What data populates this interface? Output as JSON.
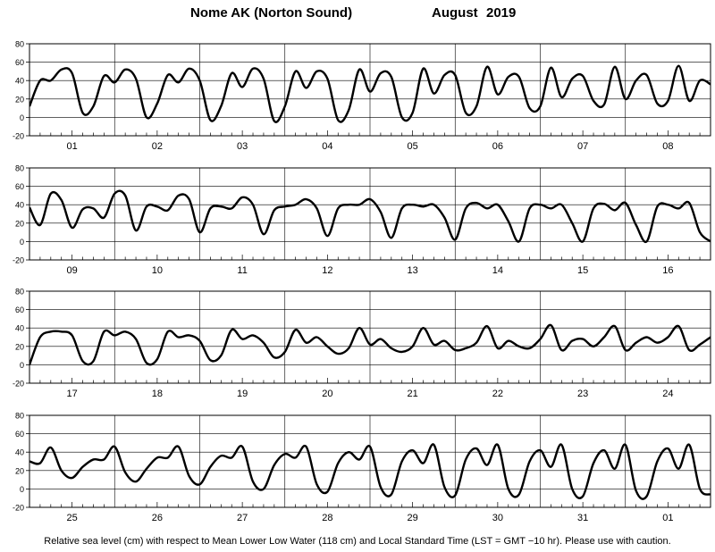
{
  "header": {
    "station": "Nome AK (Norton Sound)",
    "month": "August",
    "year": "2019"
  },
  "footer": "Relative sea level (cm) with respect to Mean Lower Low Water (118 cm) and Local Standard Time (LST = GMT −10 hr). Please use with caution.",
  "chart_data": [
    {
      "type": "line",
      "xlabel": "",
      "ylabel": "",
      "ylim": [
        -20,
        80
      ],
      "yticks": [
        -20,
        0,
        20,
        40,
        60,
        80
      ],
      "grid": "vertical day separators",
      "day_labels": [
        "01",
        "02",
        "03",
        "04",
        "05",
        "06",
        "07",
        "08"
      ],
      "x": [
        0,
        3,
        6,
        9,
        12,
        15,
        18,
        21,
        24,
        27,
        30,
        33,
        36,
        39,
        42,
        45,
        48,
        51,
        54,
        57,
        60,
        63,
        66,
        69,
        72,
        75,
        78,
        81,
        84,
        87,
        90,
        93,
        96,
        99,
        102,
        105,
        108,
        111,
        114,
        117,
        120,
        123,
        126,
        129,
        132,
        135,
        138,
        141,
        144,
        147,
        150,
        153,
        156,
        159,
        162,
        165,
        168,
        171,
        174,
        177,
        180,
        183,
        186,
        189,
        192
      ],
      "values": [
        12,
        40,
        40,
        52,
        48,
        5,
        12,
        45,
        38,
        52,
        42,
        0,
        15,
        46,
        38,
        53,
        40,
        -3,
        12,
        48,
        33,
        53,
        42,
        -4,
        12,
        50,
        32,
        50,
        42,
        -3,
        8,
        52,
        28,
        48,
        44,
        0,
        5,
        53,
        26,
        46,
        46,
        5,
        12,
        55,
        25,
        44,
        44,
        10,
        12,
        54,
        22,
        42,
        45,
        18,
        14,
        55,
        20,
        40,
        46,
        15,
        18,
        56,
        18,
        40,
        36
      ]
    },
    {
      "type": "line",
      "xlabel": "",
      "ylabel": "",
      "ylim": [
        -20,
        80
      ],
      "yticks": [
        -20,
        0,
        20,
        40,
        60,
        80
      ],
      "grid": "vertical day separators",
      "day_labels": [
        "09",
        "10",
        "11",
        "12",
        "13",
        "14",
        "15",
        "16"
      ],
      "x": [
        0,
        3,
        6,
        9,
        12,
        15,
        18,
        21,
        24,
        27,
        30,
        33,
        36,
        39,
        42,
        45,
        48,
        51,
        54,
        57,
        60,
        63,
        66,
        69,
        72,
        75,
        78,
        81,
        84,
        87,
        90,
        93,
        96,
        99,
        102,
        105,
        108,
        111,
        114,
        117,
        120,
        123,
        126,
        129,
        132,
        135,
        138,
        141,
        144,
        147,
        150,
        153,
        156,
        159,
        162,
        165,
        168,
        171,
        174,
        177,
        180,
        183,
        186,
        189,
        192
      ],
      "values": [
        37,
        18,
        52,
        45,
        15,
        35,
        36,
        26,
        52,
        50,
        12,
        38,
        38,
        34,
        50,
        46,
        10,
        36,
        38,
        36,
        48,
        40,
        8,
        34,
        38,
        40,
        46,
        36,
        6,
        36,
        40,
        40,
        46,
        32,
        4,
        36,
        40,
        38,
        40,
        26,
        2,
        36,
        42,
        36,
        40,
        22,
        0,
        36,
        40,
        36,
        40,
        20,
        0,
        36,
        41,
        34,
        42,
        18,
        0,
        38,
        40,
        36,
        42,
        10,
        0
      ]
    },
    {
      "type": "line",
      "xlabel": "",
      "ylabel": "",
      "ylim": [
        -20,
        80
      ],
      "yticks": [
        -20,
        0,
        20,
        40,
        60,
        80
      ],
      "grid": "vertical day separators",
      "day_labels": [
        "17",
        "18",
        "19",
        "20",
        "21",
        "22",
        "23",
        "24"
      ],
      "x": [
        0,
        3,
        6,
        9,
        12,
        15,
        18,
        21,
        24,
        27,
        30,
        33,
        36,
        39,
        42,
        45,
        48,
        51,
        54,
        57,
        60,
        63,
        66,
        69,
        72,
        75,
        78,
        81,
        84,
        87,
        90,
        93,
        96,
        99,
        102,
        105,
        108,
        111,
        114,
        117,
        120,
        123,
        126,
        129,
        132,
        135,
        138,
        141,
        144,
        147,
        150,
        153,
        156,
        159,
        162,
        165,
        168,
        171,
        174,
        177,
        180,
        183,
        186,
        189,
        192
      ],
      "values": [
        0,
        30,
        36,
        36,
        32,
        4,
        4,
        36,
        32,
        36,
        28,
        2,
        6,
        36,
        30,
        32,
        26,
        5,
        10,
        38,
        28,
        32,
        24,
        8,
        14,
        38,
        24,
        30,
        20,
        12,
        18,
        40,
        22,
        28,
        18,
        14,
        20,
        40,
        22,
        26,
        16,
        18,
        24,
        42,
        18,
        26,
        20,
        18,
        28,
        43,
        16,
        26,
        28,
        20,
        30,
        42,
        16,
        24,
        30,
        24,
        30,
        42,
        16,
        22,
        30
      ]
    },
    {
      "type": "line",
      "xlabel": "",
      "ylabel": "",
      "ylim": [
        -20,
        80
      ],
      "yticks": [
        -20,
        0,
        20,
        40,
        60,
        80
      ],
      "grid": "vertical day separators",
      "day_labels": [
        "25",
        "26",
        "27",
        "28",
        "29",
        "30",
        "31",
        "01"
      ],
      "x": [
        0,
        3,
        6,
        9,
        12,
        15,
        18,
        21,
        24,
        27,
        30,
        33,
        36,
        39,
        42,
        45,
        48,
        51,
        54,
        57,
        60,
        63,
        66,
        69,
        72,
        75,
        78,
        81,
        84,
        87,
        90,
        93,
        96,
        99,
        102,
        105,
        108,
        111,
        114,
        117,
        120,
        123,
        126,
        129,
        132,
        135,
        138,
        141,
        144,
        147,
        150,
        153,
        156,
        159,
        162,
        165,
        168,
        171,
        174,
        177,
        180,
        183,
        186,
        189,
        192
      ],
      "values": [
        30,
        28,
        45,
        20,
        12,
        24,
        32,
        32,
        46,
        18,
        8,
        22,
        34,
        34,
        46,
        14,
        5,
        24,
        36,
        34,
        46,
        8,
        0,
        26,
        38,
        34,
        46,
        5,
        -3,
        28,
        40,
        32,
        46,
        2,
        -6,
        30,
        42,
        28,
        48,
        2,
        -7,
        32,
        44,
        26,
        48,
        0,
        -6,
        30,
        42,
        24,
        48,
        0,
        -8,
        28,
        42,
        22,
        48,
        -2,
        -8,
        30,
        44,
        22,
        48,
        0,
        -6
      ]
    }
  ]
}
